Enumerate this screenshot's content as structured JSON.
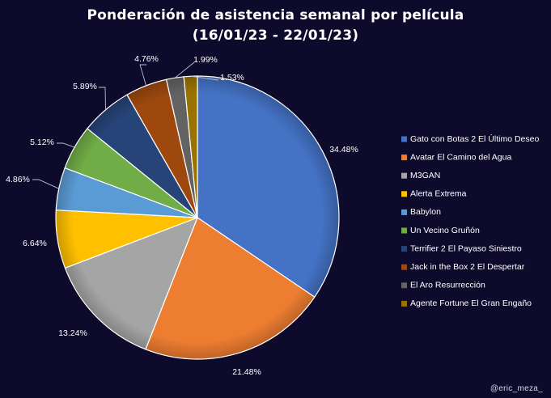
{
  "chart_data": {
    "type": "pie",
    "title_lines": [
      "Ponderación de asistencia semanal por película",
      "(16/01/23 - 22/01/23)"
    ],
    "slices": [
      {
        "label": "Gato con Botas 2 El Último Deseo",
        "value": 34.48,
        "display": "34.48%",
        "color": "#4472c4"
      },
      {
        "label": "Avatar El Camino del Agua",
        "value": 21.48,
        "display": "21.48%",
        "color": "#ed7d31"
      },
      {
        "label": "M3GAN",
        "value": 13.24,
        "display": "13.24%",
        "color": "#a5a5a5"
      },
      {
        "label": "Alerta Extrema",
        "value": 6.64,
        "display": "6.64%",
        "color": "#ffc000"
      },
      {
        "label": "Babylon",
        "value": 4.86,
        "display": "4.86%",
        "color": "#5b9bd5"
      },
      {
        "label": "Un Vecino Gruñón",
        "value": 5.12,
        "display": "5.12%",
        "color": "#70ad47"
      },
      {
        "label": "Terrifier 2 El Payaso Siniestro",
        "value": 5.89,
        "display": "5.89%",
        "color": "#264478"
      },
      {
        "label": "Jack in the Box 2 El Despertar",
        "value": 4.76,
        "display": "4.76%",
        "color": "#9e480e"
      },
      {
        "label": "El Aro Resurrección",
        "value": 1.99,
        "display": "1.99%",
        "color": "#636363"
      },
      {
        "label": "Agente Fortune El Gran Engaño",
        "value": 1.53,
        "display": "1.53%",
        "color": "#997300"
      }
    ],
    "legend_position": "right",
    "start_angle": "12 o'clock, clockwise"
  },
  "watermark": "@eric_meza_"
}
